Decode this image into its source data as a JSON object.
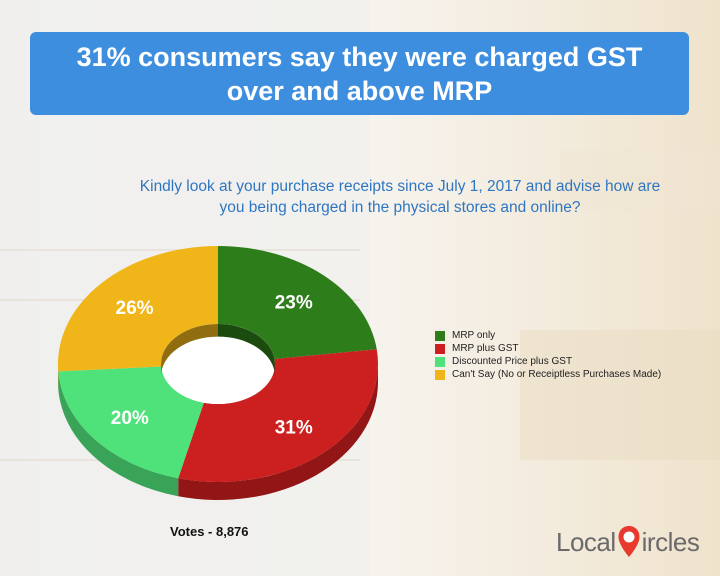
{
  "title": "31% consumers say they were charged GST over and above MRP",
  "question": "Kindly look at your purchase receipts since July 1, 2017 and advise how are you being charged in the physical stores and online?",
  "votes_label": "Votes - 8,876",
  "logo": {
    "text_left": "Local",
    "text_right": "ircles"
  },
  "chart_data": {
    "type": "pie",
    "style": "3d-donut",
    "legend_position": "right",
    "slices": [
      {
        "name": "MRP only",
        "value": 23,
        "label": "23%",
        "color": "#2e7d1b"
      },
      {
        "name": "MRP plus GST",
        "value": 31,
        "label": "31%",
        "color": "#cc1f1f"
      },
      {
        "name": "Discounted Price plus GST",
        "value": 20,
        "label": "20%",
        "color": "#4fe27a"
      },
      {
        "name": "Can't Say (No or Receiptless Purchases Made)",
        "value": 26,
        "label": "26%",
        "color": "#f0b519"
      }
    ]
  },
  "colors": {
    "title_bg": "#3e8edf",
    "question_text": "#2f76c2",
    "logo_pin": "#e8392f"
  }
}
